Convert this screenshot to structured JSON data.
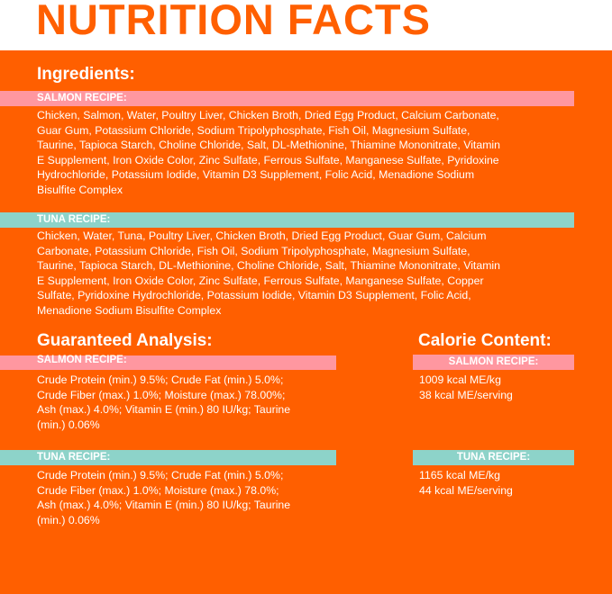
{
  "title": "NUTRITION FACTS",
  "colors": {
    "orange": "#FF5F00",
    "pink": "#FF97A0",
    "teal": "#8DD3C9"
  },
  "ingredients": {
    "heading": "Ingredients:",
    "salmon": {
      "label": "SALMON RECIPE:",
      "lines": [
        "Chicken,  Salmon, Water, Poultry Liver, Chicken Broth, Dried Egg Product, Calcium Carbonate,",
        "Guar Gum, Potassium Chloride, Sodium Tripolyphosphate, Fish Oil, Magnesium Sulfate,",
        "Taurine, Tapioca Starch, Choline Chloride, Salt, DL-Methionine, Thiamine Mononitrate, Vitamin",
        "E Supplement, Iron Oxide Color, Zinc Sulfate, Ferrous Sulfate, Manganese Sulfate, Pyridoxine",
        "Hydrochloride, Potassium Iodide, Vitamin D3 Supplement, Folic Acid, Menadione Sodium",
        "Bisulfite Complex"
      ]
    },
    "tuna": {
      "label": "TUNA RECIPE:",
      "lines": [
        "Chicken, Water, Tuna, Poultry Liver, Chicken Broth, Dried Egg Product, Guar Gum, Calcium",
        "Carbonate, Potassium Chloride, Fish Oil, Sodium Tripolyphosphate, Magnesium Sulfate,",
        "Taurine, Tapioca Starch, DL-Methionine, Choline Chloride, Salt, Thiamine Mononitrate, Vitamin",
        "E Supplement, Iron Oxide Color, Zinc Sulfate, Ferrous Sulfate, Manganese Sulfate, Copper",
        "Sulfate, Pyridoxine Hydrochloride, Potassium Iodide, Vitamin D3 Supplement, Folic Acid,",
        "Menadione Sodium Bisulfite Complex"
      ]
    }
  },
  "analysis": {
    "heading": "Guaranteed Analysis:",
    "salmon": {
      "label": "SALMON RECIPE:",
      "lines": [
        "Crude Protein (min.) 9.5%; Crude Fat (min.) 5.0%;",
        "Crude Fiber (max.) 1.0%; Moisture (max.) 78.00%;",
        "Ash (max.) 4.0%; Vitamin E (min.) 80 IU/kg; Taurine",
        "(min.) 0.06%"
      ]
    },
    "tuna": {
      "label": "TUNA RECIPE:",
      "lines": [
        "Crude Protein (min.) 9.5%; Crude Fat (min.) 5.0%;",
        "Crude Fiber (max.) 1.0%;  Moisture (max.) 78.0%;",
        "Ash (max.) 4.0%; Vitamin E (min.) 80 IU/kg; Taurine",
        "(min.) 0.06%"
      ]
    }
  },
  "calories": {
    "heading": "Calorie Content:",
    "salmon": {
      "label": "SALMON RECIPE:",
      "lines": [
        "1009 kcal ME/kg",
        "38 kcal ME/serving"
      ]
    },
    "tuna": {
      "label": "TUNA RECIPE:",
      "lines": [
        "1165 kcal ME/kg",
        "44 kcal ME/serving"
      ]
    }
  }
}
